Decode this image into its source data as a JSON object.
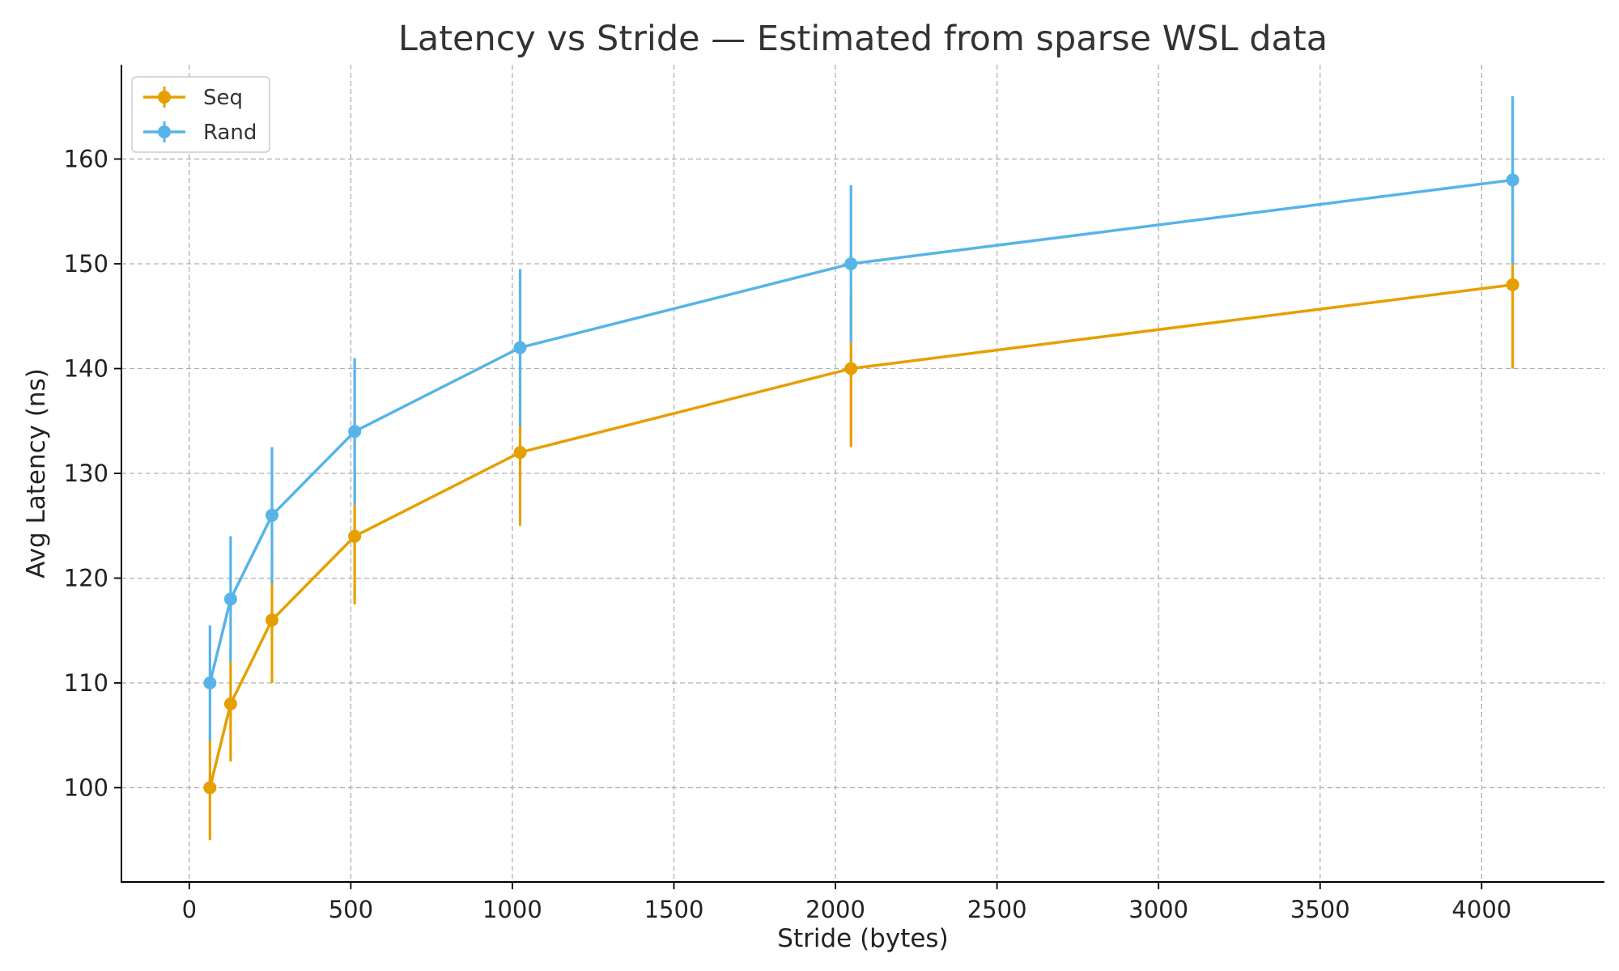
{
  "chart_data": {
    "type": "line",
    "title": "Latency vs Stride — Estimated from sparse WSL data",
    "xlabel": "Stride (bytes)",
    "ylabel": "Avg Latency (ns)",
    "xlim": [
      -210,
      4380
    ],
    "ylim": [
      91,
      169
    ],
    "x_ticks": [
      0,
      500,
      1000,
      1500,
      2000,
      2500,
      3000,
      3500,
      4000
    ],
    "y_ticks": [
      100,
      110,
      120,
      130,
      140,
      150,
      160
    ],
    "x": [
      64,
      128,
      256,
      512,
      1024,
      2048,
      4096
    ],
    "grid": true,
    "legend_position": "top-left",
    "series": [
      {
        "name": "Seq",
        "color": "#E69F00",
        "values": [
          100,
          108,
          116,
          124,
          132,
          140,
          148
        ],
        "error": [
          5,
          5.5,
          6,
          6.5,
          7,
          7.5,
          8
        ]
      },
      {
        "name": "Rand",
        "color": "#56B4E9",
        "values": [
          110,
          118,
          126,
          134,
          142,
          150,
          158
        ],
        "error": [
          5.5,
          6,
          6.5,
          7,
          7.5,
          7.5,
          8
        ]
      }
    ]
  }
}
